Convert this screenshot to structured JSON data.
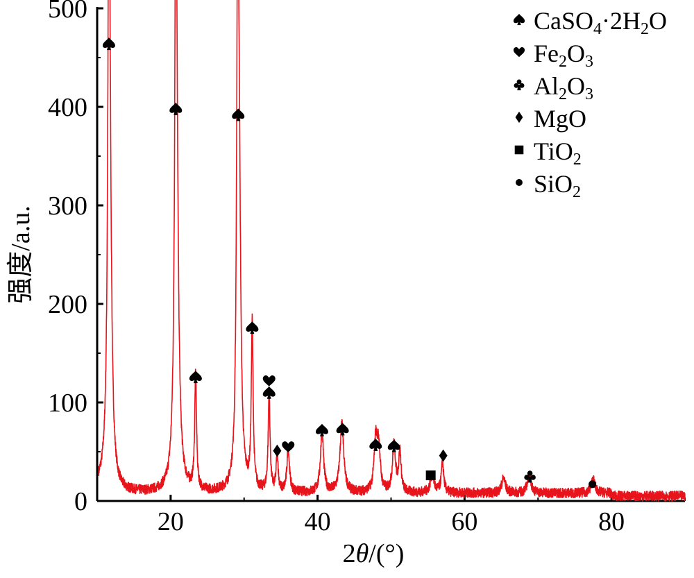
{
  "chart_data": {
    "type": "line",
    "xlabel_prefix": "2",
    "xlabel_symbol": "θ",
    "xlabel_suffix": "/(°)",
    "ylabel": "强度/a.u.",
    "xlim": [
      10,
      90
    ],
    "ylim": [
      0,
      500
    ],
    "x_ticks": [
      20,
      40,
      60,
      80
    ],
    "y_ticks": [
      0,
      100,
      200,
      300,
      400,
      500
    ],
    "grid": false,
    "legend_position": "top-right",
    "line_color": "#e8141b",
    "baseline": 8,
    "noise": 5,
    "peaks": [
      {
        "x": 11.6,
        "y": 455,
        "w": 0.15
      },
      {
        "x": 11.7,
        "y": 280,
        "w": 0.3
      },
      {
        "x": 20.7,
        "y": 388,
        "w": 0.15
      },
      {
        "x": 20.8,
        "y": 320,
        "w": 0.3
      },
      {
        "x": 23.4,
        "y": 116,
        "w": 0.15
      },
      {
        "x": 29.1,
        "y": 370,
        "w": 0.15
      },
      {
        "x": 29.3,
        "y": 345,
        "w": 0.25
      },
      {
        "x": 31.1,
        "y": 168,
        "w": 0.15
      },
      {
        "x": 33.4,
        "y": 100,
        "w": 0.15
      },
      {
        "x": 34.5,
        "y": 40,
        "w": 0.15
      },
      {
        "x": 36.0,
        "y": 45,
        "w": 0.2
      },
      {
        "x": 40.6,
        "y": 62,
        "w": 0.25
      },
      {
        "x": 43.3,
        "y": 70,
        "w": 0.3
      },
      {
        "x": 47.9,
        "y": 50,
        "w": 0.25
      },
      {
        "x": 48.3,
        "y": 45,
        "w": 0.25
      },
      {
        "x": 50.4,
        "y": 48,
        "w": 0.25
      },
      {
        "x": 51.2,
        "y": 40,
        "w": 0.2
      },
      {
        "x": 55.6,
        "y": 18,
        "w": 0.3
      },
      {
        "x": 57.0,
        "y": 30,
        "w": 0.2
      },
      {
        "x": 65.3,
        "y": 15,
        "w": 0.3
      },
      {
        "x": 68.8,
        "y": 18,
        "w": 0.3
      },
      {
        "x": 77.5,
        "y": 14,
        "w": 0.3
      }
    ],
    "markers": [
      {
        "x": 11.6,
        "y": 464,
        "phase": "CaSO4·2H2O"
      },
      {
        "x": 20.7,
        "y": 398,
        "phase": "CaSO4·2H2O"
      },
      {
        "x": 23.4,
        "y": 126,
        "phase": "CaSO4·2H2O"
      },
      {
        "x": 29.2,
        "y": 392,
        "phase": "CaSO4·2H2O"
      },
      {
        "x": 31.1,
        "y": 176,
        "phase": "CaSO4·2H2O"
      },
      {
        "x": 33.4,
        "y": 110,
        "phase": "CaSO4·2H2O"
      },
      {
        "x": 33.4,
        "y": 122,
        "phase": "Fe2O3"
      },
      {
        "x": 34.5,
        "y": 51,
        "phase": "MgO"
      },
      {
        "x": 36.0,
        "y": 55,
        "phase": "Fe2O3"
      },
      {
        "x": 40.6,
        "y": 72,
        "phase": "CaSO4·2H2O"
      },
      {
        "x": 43.4,
        "y": 73,
        "phase": "CaSO4·2H2O"
      },
      {
        "x": 47.9,
        "y": 57,
        "phase": "CaSO4·2H2O"
      },
      {
        "x": 50.4,
        "y": 56,
        "phase": "CaSO4·2H2O"
      },
      {
        "x": 55.4,
        "y": 26,
        "phase": "TiO2"
      },
      {
        "x": 57.1,
        "y": 46,
        "phase": "MgO"
      },
      {
        "x": 68.9,
        "y": 25,
        "phase": "Al2O3"
      },
      {
        "x": 77.4,
        "y": 17,
        "phase": "SiO2"
      }
    ],
    "legend": [
      {
        "phase": "CaSO4·2H2O",
        "symbol": "spade",
        "parts": [
          [
            "CaSO",
            false
          ],
          [
            "4",
            true
          ],
          [
            "·2H",
            false
          ],
          [
            "2",
            true
          ],
          [
            "O",
            false
          ]
        ]
      },
      {
        "phase": "Fe2O3",
        "symbol": "heart",
        "parts": [
          [
            "Fe",
            false
          ],
          [
            "2",
            true
          ],
          [
            "O",
            false
          ],
          [
            "3",
            true
          ]
        ]
      },
      {
        "phase": "Al2O3",
        "symbol": "club",
        "parts": [
          [
            "Al",
            false
          ],
          [
            "2",
            true
          ],
          [
            "O",
            false
          ],
          [
            "3",
            true
          ]
        ]
      },
      {
        "phase": "MgO",
        "symbol": "diamond",
        "parts": [
          [
            "MgO",
            false
          ]
        ]
      },
      {
        "phase": "TiO2",
        "symbol": "square",
        "parts": [
          [
            "TiO",
            false
          ],
          [
            "2",
            true
          ]
        ]
      },
      {
        "phase": "SiO2",
        "symbol": "circle",
        "parts": [
          [
            "SiO",
            false
          ],
          [
            "2",
            true
          ]
        ]
      }
    ]
  }
}
